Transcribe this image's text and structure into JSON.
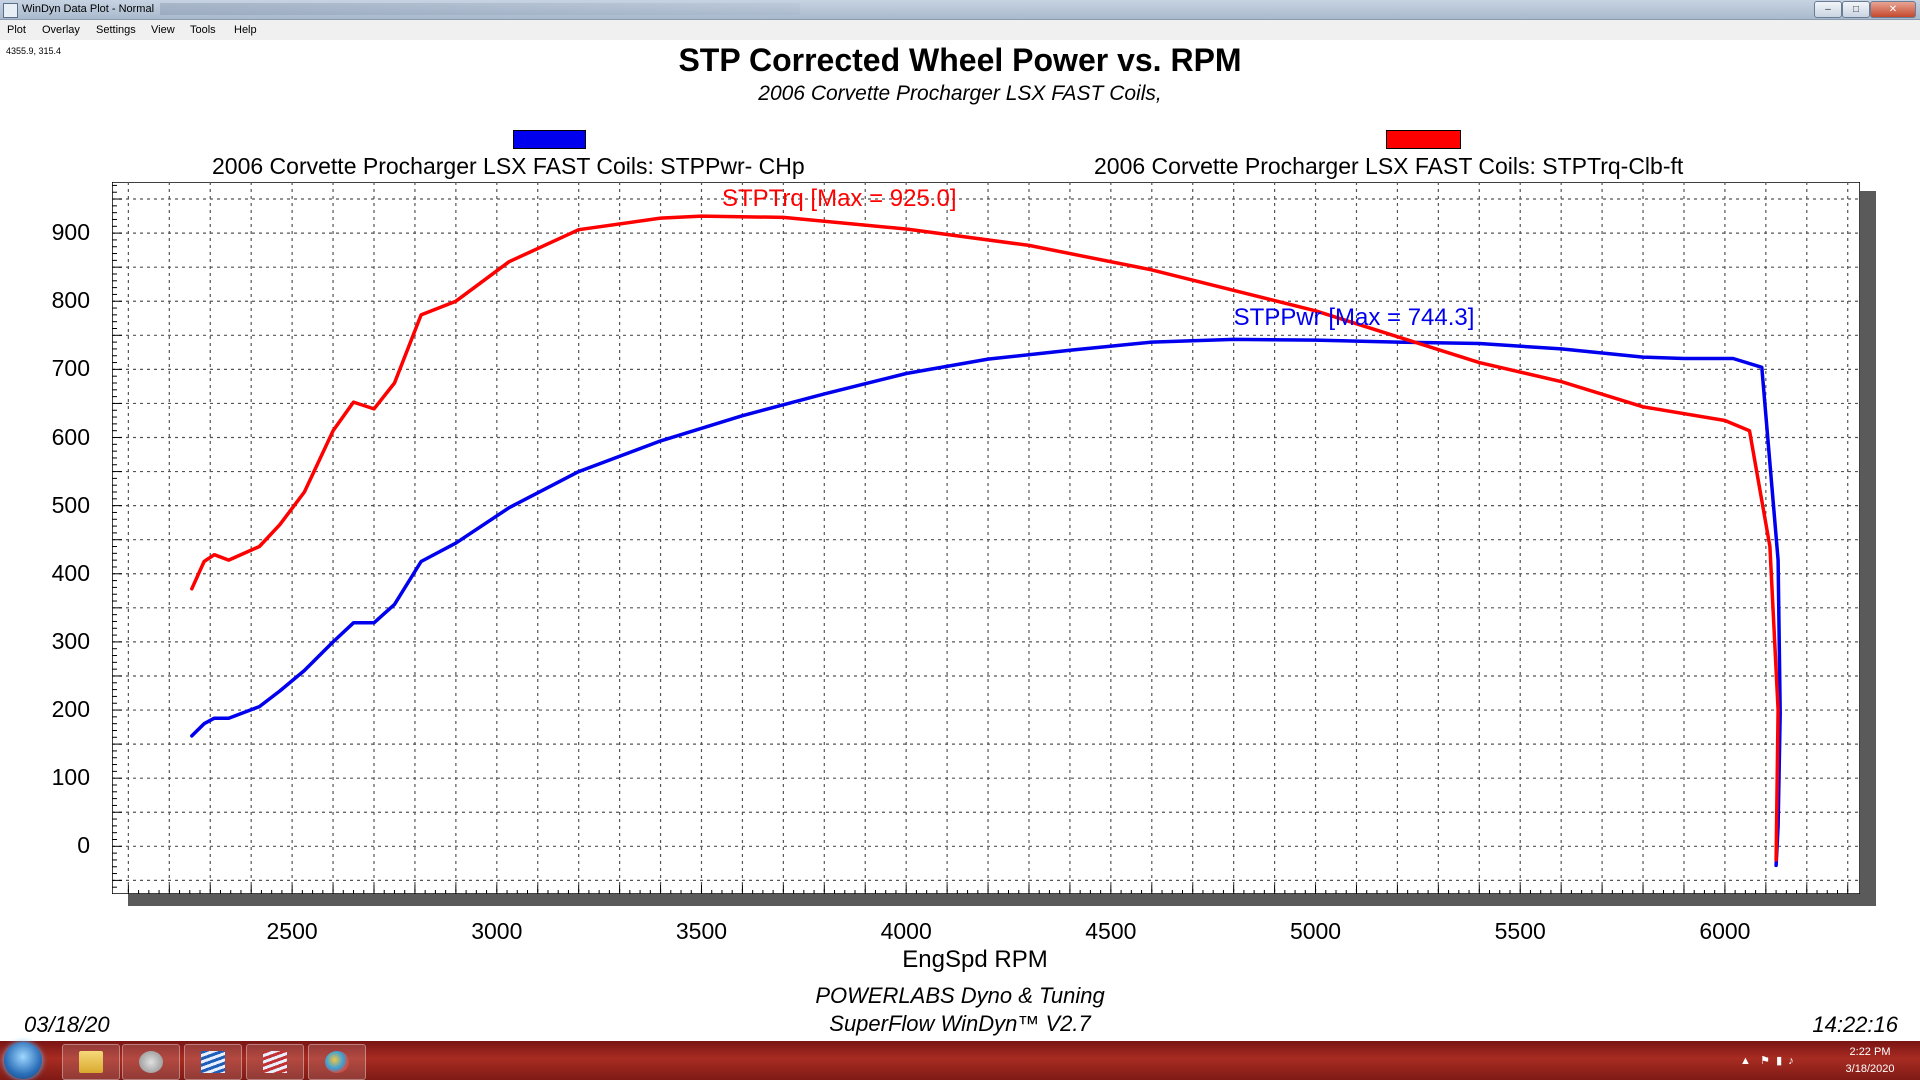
{
  "window": {
    "title": "WinDyn Data Plot - Normal",
    "buttons": {
      "minimize": "–",
      "maximize": "□",
      "close": "✕"
    }
  },
  "menu": [
    "Plot",
    "Overlay",
    "Settings",
    "View",
    "Tools",
    "Help"
  ],
  "cursor_readout": "4355.9, 315.4",
  "chart_data": {
    "type": "line",
    "title": "STP Corrected Wheel Power vs. RPM",
    "subtitle": "2006 Corvette Procharger LSX FAST Coils,",
    "xlabel": "EngSpd  RPM",
    "xlim": [
      2060,
      6330
    ],
    "ylim": [
      -70,
      975
    ],
    "xticks": [
      2500,
      3000,
      3500,
      4000,
      4500,
      5000,
      5500,
      6000
    ],
    "yticks": [
      0,
      100,
      200,
      300,
      400,
      500,
      600,
      700,
      800,
      900
    ],
    "grid": true,
    "legend_position": "top",
    "series": [
      {
        "name": "2006 Corvette Procharger LSX FAST Coils: STPPwr- CHp",
        "color": "#0000ee",
        "annotation": "STPPwr [Max = 744.3]",
        "annotation_at": [
          4800,
          765
        ],
        "points": [
          [
            2255,
            162
          ],
          [
            2285,
            180
          ],
          [
            2310,
            188
          ],
          [
            2345,
            188
          ],
          [
            2420,
            205
          ],
          [
            2470,
            228
          ],
          [
            2530,
            258
          ],
          [
            2600,
            300
          ],
          [
            2650,
            328
          ],
          [
            2700,
            328
          ],
          [
            2750,
            355
          ],
          [
            2815,
            418
          ],
          [
            2900,
            445
          ],
          [
            3030,
            497
          ],
          [
            3200,
            550
          ],
          [
            3400,
            595
          ],
          [
            3600,
            632
          ],
          [
            3800,
            664
          ],
          [
            4000,
            694
          ],
          [
            4200,
            715
          ],
          [
            4400,
            728
          ],
          [
            4600,
            740
          ],
          [
            4800,
            744
          ],
          [
            5000,
            743
          ],
          [
            5200,
            740
          ],
          [
            5400,
            738
          ],
          [
            5600,
            730
          ],
          [
            5800,
            718
          ],
          [
            5900,
            716
          ],
          [
            6020,
            716
          ],
          [
            6090,
            703
          ],
          [
            6130,
            420
          ],
          [
            6135,
            195
          ],
          [
            6130,
            30
          ],
          [
            6125,
            -28
          ]
        ]
      },
      {
        "name": "2006 Corvette Procharger LSX FAST Coils: STPTrq-Clb-ft",
        "color": "#ff0000",
        "annotation": "STPTrq [Max = 925.0]",
        "annotation_at": [
          3550,
          940
        ],
        "points": [
          [
            2255,
            378
          ],
          [
            2285,
            418
          ],
          [
            2310,
            428
          ],
          [
            2345,
            420
          ],
          [
            2420,
            440
          ],
          [
            2470,
            472
          ],
          [
            2530,
            520
          ],
          [
            2600,
            610
          ],
          [
            2650,
            652
          ],
          [
            2700,
            642
          ],
          [
            2750,
            680
          ],
          [
            2815,
            780
          ],
          [
            2900,
            800
          ],
          [
            3030,
            858
          ],
          [
            3200,
            905
          ],
          [
            3400,
            922
          ],
          [
            3500,
            925
          ],
          [
            3700,
            923
          ],
          [
            4000,
            906
          ],
          [
            4300,
            882
          ],
          [
            4600,
            846
          ],
          [
            5000,
            786
          ],
          [
            5200,
            748
          ],
          [
            5400,
            710
          ],
          [
            5600,
            682
          ],
          [
            5800,
            645
          ],
          [
            6000,
            625
          ],
          [
            6060,
            610
          ],
          [
            6110,
            440
          ],
          [
            6130,
            200
          ],
          [
            6125,
            -20
          ]
        ]
      }
    ]
  },
  "footer": {
    "line1": "POWERLABS Dyno & Tuning",
    "line2": "SuperFlow WinDyn™ V2.7",
    "date": "03/18/20",
    "time": "14:22:16"
  },
  "taskbar": {
    "apps": [
      "folder-icon",
      "paint-brush-icon",
      "windyn-icon",
      "windyn-plot-icon",
      "palette-icon"
    ],
    "clock_time": "2:22 PM",
    "clock_date": "3/18/2020"
  }
}
